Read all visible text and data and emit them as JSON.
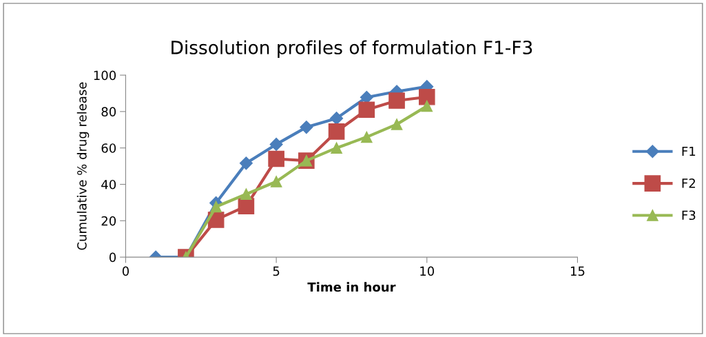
{
  "chart_data": {
    "type": "line",
    "title": "Dissolution profiles of formulation F1-F3",
    "xlabel": "Time in hour",
    "ylabel": "Cumulative % drug release",
    "xlim": [
      0,
      15
    ],
    "xticks": [
      0,
      5,
      10,
      15
    ],
    "ylim": [
      0,
      100
    ],
    "yticks": [
      0,
      20,
      40,
      60,
      80,
      100
    ],
    "grid": false,
    "legend": "right",
    "series": [
      {
        "name": "F1",
        "color": "#4a7ebb",
        "marker": "diamond",
        "x": [
          1,
          2,
          3,
          4,
          5,
          6,
          7,
          8,
          9,
          10
        ],
        "values": [
          0,
          0,
          29.8,
          51.6,
          62,
          71.4,
          76.3,
          87.8,
          91,
          93.7
        ]
      },
      {
        "name": "F2",
        "color": "#be4b48",
        "marker": "square",
        "x": [
          2,
          3,
          4,
          5,
          6,
          7,
          8,
          9,
          10
        ],
        "values": [
          0,
          20.5,
          28,
          54,
          53,
          69,
          81,
          86,
          88
        ]
      },
      {
        "name": "F3",
        "color": "#98b954",
        "marker": "triangle",
        "x": [
          2,
          3,
          4,
          5,
          6,
          7,
          8,
          9,
          10
        ],
        "values": [
          0,
          27.7,
          34.6,
          41.5,
          53,
          60,
          66,
          73,
          83
        ]
      }
    ]
  }
}
